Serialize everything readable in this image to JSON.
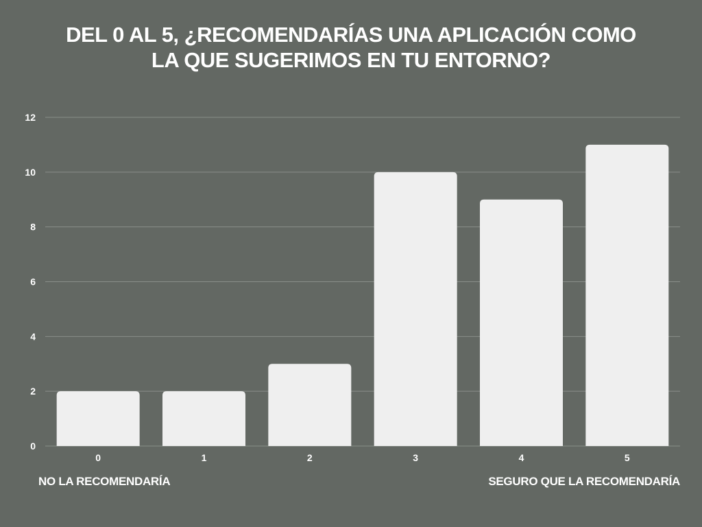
{
  "title": {
    "line1": "DEL 0 AL 5, ¿RECOMENDARÍAS UNA APLICACIÓN COMO",
    "line2": "LA QUE SUGERIMOS EN TU ENTORNO?"
  },
  "notes": {
    "left": "NO LA RECOMENDARÍA",
    "right": "SEGURO QUE LA RECOMENDARÍA"
  },
  "colors": {
    "background": "#636863",
    "bar": "#efefef",
    "grid": "#8a8f8a",
    "text": "#ffffff"
  },
  "chart_data": {
    "type": "bar",
    "title": "DEL 0 AL 5, ¿RECOMENDARÍAS UNA APLICACIÓN COMO LA QUE SUGERIMOS EN TU ENTORNO?",
    "xlabel": "",
    "ylabel": "",
    "categories": [
      "0",
      "1",
      "2",
      "3",
      "4",
      "5"
    ],
    "values": [
      2,
      2,
      3,
      10,
      9,
      11
    ],
    "ylim": [
      0,
      12
    ],
    "yticks": [
      "0",
      "2",
      "4",
      "6",
      "8",
      "10",
      "12"
    ],
    "grid": true,
    "legend": "none"
  }
}
